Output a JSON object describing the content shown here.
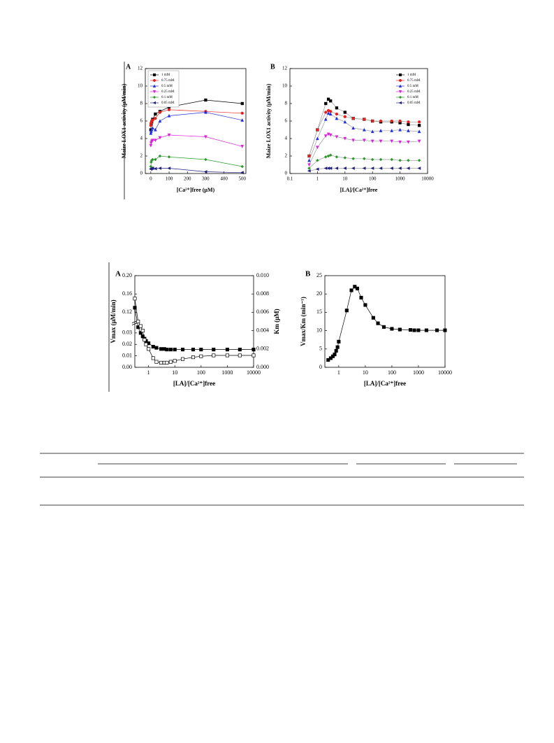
{
  "chart_data": [
    {
      "type": "line",
      "panel_label": "A",
      "ylabel": "Maize LOX1 activity (μM/min)",
      "xlabel": "[Ca²⁺]free (μM)",
      "xlim": [
        -30,
        520
      ],
      "xticks": [
        0,
        100,
        200,
        300,
        400,
        500
      ],
      "ylim": [
        0,
        12
      ],
      "yticks": [
        0,
        2,
        4,
        6,
        8,
        10,
        12
      ],
      "legend": "upper left",
      "x": [
        0,
        2,
        5,
        10,
        25,
        50,
        100,
        300,
        500
      ],
      "series": [
        {
          "name": "1 mM",
          "color": "#000000",
          "marker": "square",
          "values": [
            5.0,
            5.6,
            5.9,
            6.2,
            6.8,
            7.1,
            7.6,
            8.4,
            8.0
          ]
        },
        {
          "name": "0.75 mM",
          "color": "#e8201c",
          "marker": "circle",
          "values": [
            5.5,
            5.8,
            6.0,
            6.1,
            6.3,
            7.0,
            7.3,
            7.1,
            6.9
          ]
        },
        {
          "name": "0.5 mM",
          "color": "#2030e0",
          "marker": "triangle-up",
          "values": [
            4.6,
            4.8,
            5.0,
            5.2,
            5.0,
            6.0,
            6.6,
            7.0,
            6.1
          ]
        },
        {
          "name": "0.25 mM",
          "color": "#e020e0",
          "marker": "triangle-down",
          "values": [
            3.2,
            3.5,
            3.7,
            3.8,
            3.8,
            4.1,
            4.4,
            4.2,
            3.1
          ]
        },
        {
          "name": "0.1 mM",
          "color": "#2a9a2a",
          "marker": "diamond",
          "values": [
            0.8,
            1.3,
            1.5,
            1.6,
            1.6,
            2.0,
            1.9,
            1.6,
            0.8
          ]
        },
        {
          "name": "0.05 mM",
          "color": "#202080",
          "marker": "triangle-left",
          "values": [
            0.5,
            0.55,
            0.6,
            0.6,
            0.55,
            0.6,
            0.6,
            0.2,
            0.1
          ]
        }
      ]
    },
    {
      "type": "line",
      "panel_label": "B",
      "ylabel": "Maize LOX1 activity (μM/min)",
      "xlabel": "[LA]/[Ca²⁺]free",
      "xlog": true,
      "xlim": [
        0.1,
        10000
      ],
      "xticks": [
        0.1,
        1,
        10,
        100,
        1000,
        10000
      ],
      "ylim": [
        0,
        12
      ],
      "yticks": [
        0,
        2,
        4,
        6,
        8,
        10,
        12
      ],
      "legend": "upper right",
      "line_color": "#9a9a9a",
      "x": [
        0.5,
        1,
        2,
        2.5,
        3,
        5,
        10,
        20,
        50,
        100,
        200,
        500,
        1000,
        2000,
        5000
      ],
      "series": [
        {
          "name": "1 mM",
          "color": "#000000",
          "marker": "square",
          "values": [
            2,
            5,
            8,
            8.5,
            8.3,
            7.5,
            7.0,
            6.3,
            6.2,
            6.0,
            5.9,
            5.9,
            5.8,
            5.6,
            5.5
          ]
        },
        {
          "name": "0.75 mM",
          "color": "#e8201c",
          "marker": "circle",
          "values": [
            2,
            5,
            7,
            7.2,
            7.1,
            6.8,
            6.5,
            6.3,
            6.2,
            6.0,
            6.0,
            6.0,
            6.0,
            5.9,
            5.9
          ]
        },
        {
          "name": "0.5 mM",
          "color": "#2030e0",
          "marker": "triangle-up",
          "values": [
            1.5,
            4,
            6.2,
            6.9,
            6.8,
            6.3,
            5.9,
            5.2,
            5.0,
            4.8,
            4.9,
            4.9,
            5.0,
            4.9,
            4.8
          ]
        },
        {
          "name": "0.25 mM",
          "color": "#e020e0",
          "marker": "triangle-down",
          "values": [
            1,
            3,
            4.3,
            4.5,
            4.4,
            4.2,
            4.0,
            3.8,
            3.8,
            3.7,
            3.7,
            3.7,
            3.6,
            3.6,
            3.7
          ]
        },
        {
          "name": "0.1 mM",
          "color": "#2a9a2a",
          "marker": "diamond",
          "values": [
            0.6,
            1.5,
            1.9,
            2.0,
            2.1,
            1.9,
            1.8,
            1.7,
            1.7,
            1.6,
            1.6,
            1.6,
            1.5,
            1.5,
            1.5
          ]
        },
        {
          "name": "0.05 mM",
          "color": "#202080",
          "marker": "triangle-left",
          "values": [
            0.3,
            0.5,
            0.6,
            0.6,
            0.6,
            0.6,
            0.6,
            0.6,
            0.6,
            0.6,
            0.6,
            0.6,
            0.6,
            0.6,
            0.6
          ]
        }
      ]
    },
    {
      "type": "line",
      "panel_label": "A",
      "ylabel": "Vmax (μM/min)",
      "y2label": "Km (μM)",
      "xlabel": "[LA]/[Ca²⁺]free",
      "xlog": true,
      "xlim": [
        0.3,
        10000
      ],
      "xticks": [
        1,
        10,
        100,
        1000,
        10000
      ],
      "ylim": [
        0,
        0.2
      ],
      "axis_break": [
        0.04,
        0.1
      ],
      "yticks": [
        {
          "value": 0,
          "label": "0.00"
        },
        0.01,
        0.02,
        0.03,
        0.12,
        0.16,
        {
          "value": 0.2,
          "label": "0.20"
        }
      ],
      "y2lim": [
        0,
        0.01
      ],
      "y2ticks": [
        {
          "value": 0,
          "label": "0.000"
        },
        0.002,
        0.004,
        0.006,
        0.008,
        {
          "value": 0.01,
          "label": "0.010"
        }
      ],
      "x": [
        0.3,
        0.4,
        0.5,
        0.6,
        0.7,
        0.8,
        1,
        1.5,
        2,
        3,
        4,
        5,
        7,
        10,
        20,
        50,
        100,
        300,
        1000,
        3000,
        10000
      ],
      "series": [
        {
          "color": "#000000",
          "marker": "square",
          "values": [
            0.13,
            0.035,
            0.03,
            0.027,
            0.025,
            0.023,
            0.021,
            0.018,
            0.017,
            0.016,
            0.016,
            0.0155,
            0.0155,
            0.0155,
            0.0155,
            0.0155,
            0.0155,
            0.0155,
            0.0155,
            0.0155,
            0.0155
          ]
        },
        {
          "color": "#000000",
          "marker": "square",
          "marker_fill": "#ffffff",
          "axis": "y2",
          "values": [
            0.0075,
            0.005,
            0.0045,
            0.004,
            0.003,
            0.0025,
            0.002,
            0.001,
            0.0006,
            0.0005,
            0.0005,
            0.0005,
            0.0006,
            0.0007,
            0.0009,
            0.0011,
            0.0012,
            0.0013,
            0.0013,
            0.0013,
            0.0013
          ]
        }
      ]
    },
    {
      "type": "line",
      "panel_label": "B",
      "ylabel": "Vmax/Km (min⁻¹)",
      "xlabel": "[LA]/[Ca²⁺]free",
      "xlog": true,
      "xlim": [
        0.3,
        10000
      ],
      "xticks": [
        1,
        10,
        100,
        1000,
        10000
      ],
      "ylim": [
        0,
        25
      ],
      "yticks": [
        0,
        5,
        10,
        15,
        20,
        25
      ],
      "x": [
        0.4,
        0.5,
        0.6,
        0.7,
        0.8,
        0.9,
        1,
        2,
        3,
        4,
        5,
        7,
        10,
        20,
        30,
        50,
        100,
        200,
        500,
        700,
        1000,
        2000,
        5000,
        10000
      ],
      "series": [
        {
          "color": "#000000",
          "marker": "square",
          "values": [
            2,
            2.5,
            3,
            3.5,
            4.5,
            5.5,
            7,
            15.5,
            21,
            22,
            21.5,
            19,
            17,
            13.5,
            12,
            11,
            10.5,
            10.3,
            10.2,
            10.1,
            10.1,
            10.1,
            10.1,
            10.1
          ]
        }
      ]
    }
  ]
}
